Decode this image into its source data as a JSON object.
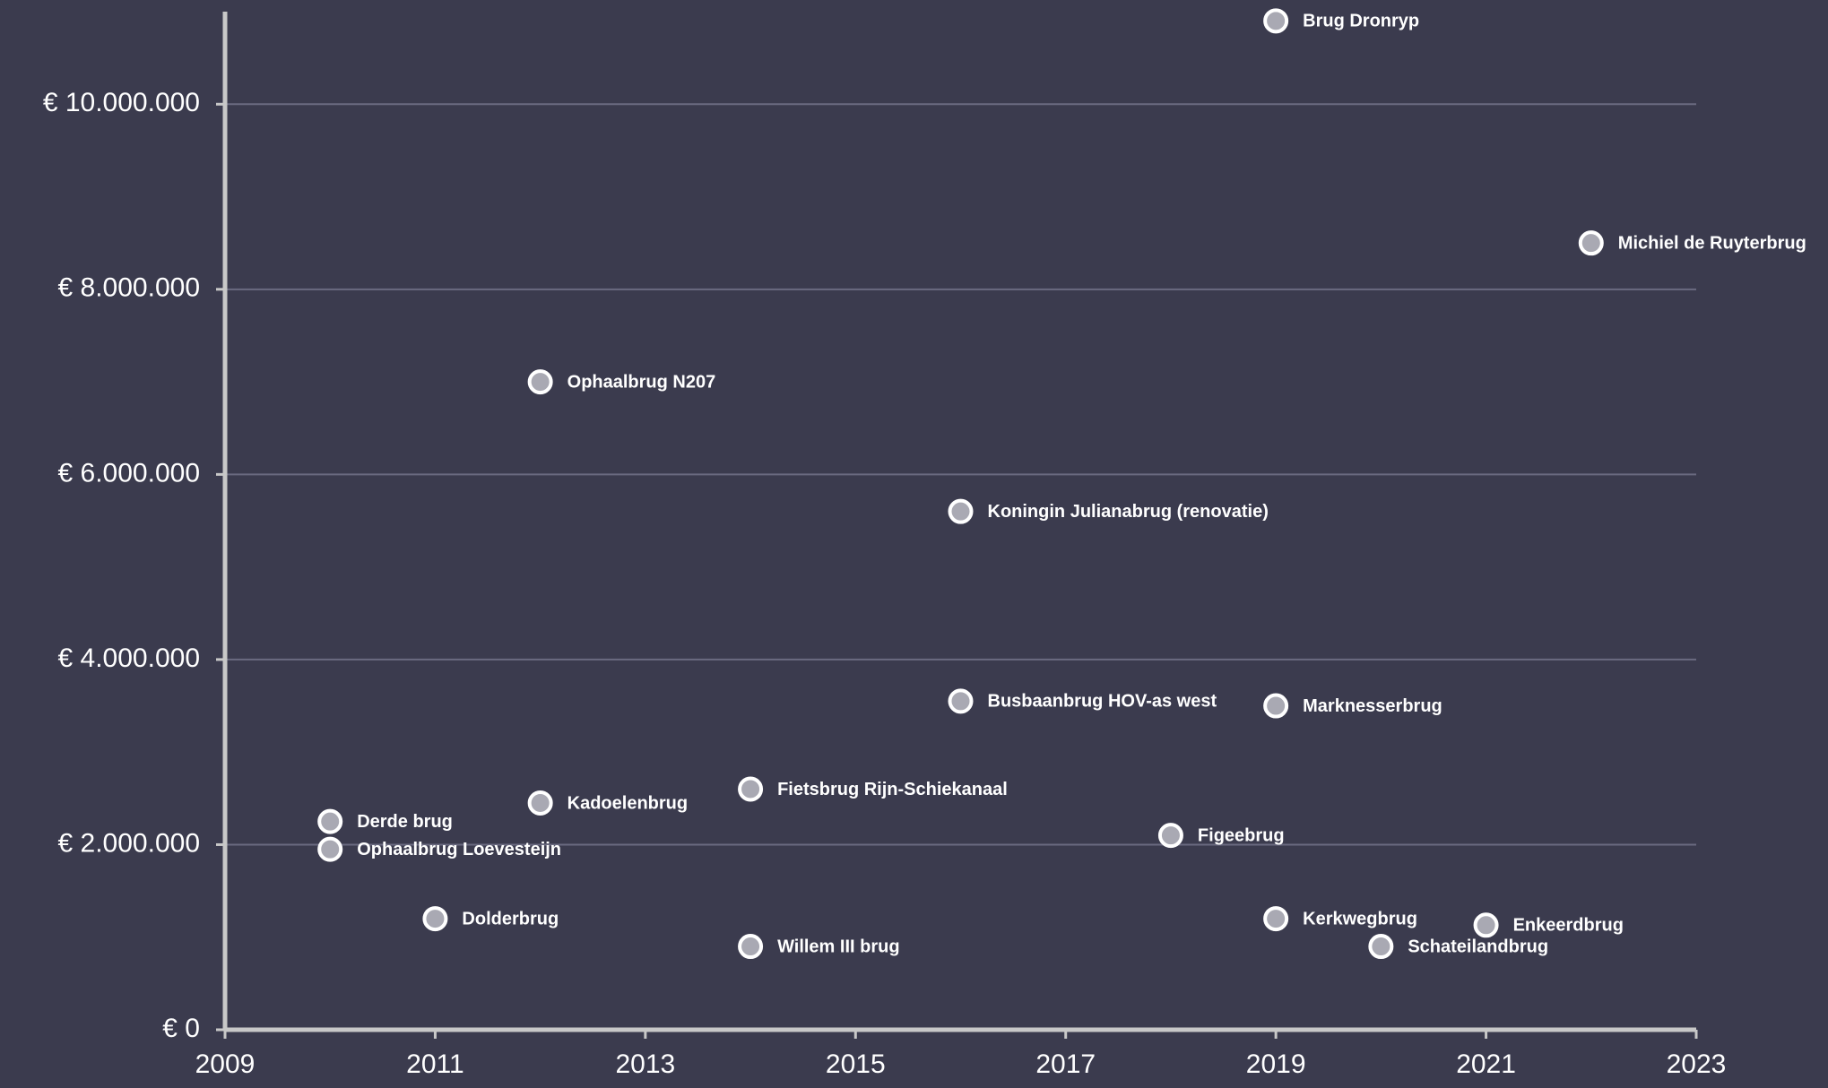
{
  "chart_data": {
    "type": "scatter",
    "x": [
      2019,
      2022,
      2012,
      2016,
      2016,
      2019,
      2014,
      2012,
      2010,
      2010,
      2018,
      2011,
      2014,
      2019,
      2021,
      2020
    ],
    "values": [
      10900000,
      8500000,
      7000000,
      5600000,
      3550000,
      3500000,
      2600000,
      2450000,
      2250000,
      1950000,
      2100000,
      1200000,
      900000,
      1200000,
      1130000,
      900000
    ],
    "point_labels": [
      "Brug Dronryp",
      "Michiel de Ruyterbrug",
      "Ophaalbrug N207",
      "Koningin Julianabrug (renovatie)",
      "Busbaanbrug HOV-as west",
      "Marknesserbrug",
      "Fietsbrug Rijn-Schiekanaal",
      "Kadoelenbrug",
      "Derde brug",
      "Ophaalbrug Loevesteijn",
      "Figeebrug",
      "Dolderbrug",
      "Willem III brug",
      "Kerkwegbrug",
      "Enkeerdbrug",
      "Schateilandbrug"
    ],
    "color": "#a9a9b3",
    "xlim": [
      2009,
      2023
    ],
    "xticks": [
      2009,
      2011,
      2013,
      2015,
      2017,
      2019,
      2021,
      2023
    ],
    "ylim": [
      0,
      11000000
    ],
    "yticks": [
      {
        "value": 0,
        "label": "€ 0"
      },
      {
        "value": 2000000,
        "label": "€ 2.000.000"
      },
      {
        "value": 4000000,
        "label": "€ 4.000.000"
      },
      {
        "value": 6000000,
        "label": "€ 6.000.000"
      },
      {
        "value": 8000000,
        "label": "€ 8.000.000"
      },
      {
        "value": 10000000,
        "label": "€ 10.000.000"
      }
    ],
    "grid": true
  }
}
